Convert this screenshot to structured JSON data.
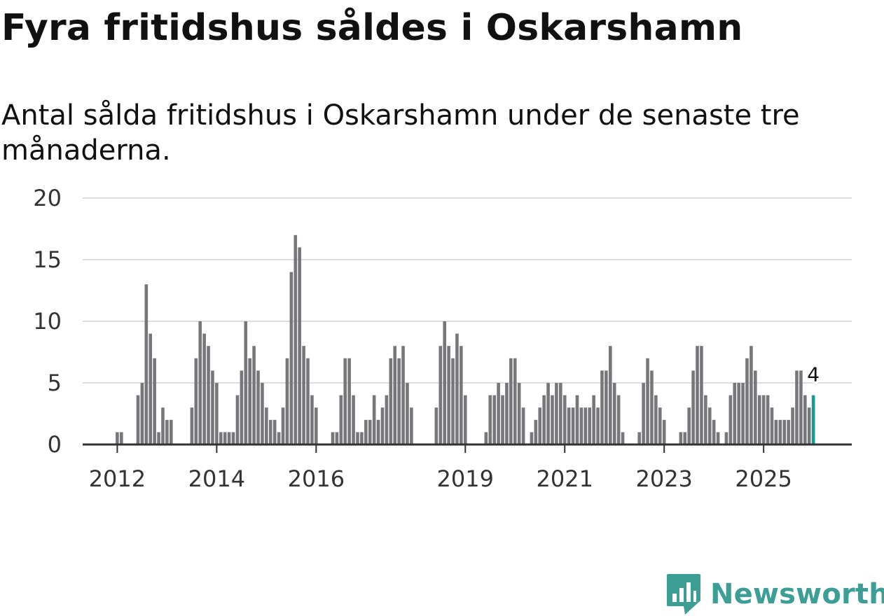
{
  "chart_data": {
    "type": "bar",
    "title": "Fyra fritidshus såldes i Oskarshamn",
    "subtitle": "Antal sålda fritidshus i Oskarshamn under de senaste tre månaderna.",
    "xlabel": "",
    "ylabel": "",
    "ylim": [
      0,
      20
    ],
    "yticks": [
      "0",
      "5",
      "10",
      "15",
      "20"
    ],
    "xticks": [
      "2012",
      "2014",
      "2016",
      "2019",
      "2021",
      "2023",
      "2025"
    ],
    "highlight_label": "4",
    "values": [
      0,
      1,
      1,
      0,
      0,
      0,
      4,
      5,
      13,
      9,
      7,
      1,
      3,
      2,
      2,
      0,
      0,
      0,
      0,
      3,
      7,
      10,
      9,
      8,
      6,
      5,
      1,
      1,
      1,
      1,
      4,
      6,
      10,
      7,
      8,
      6,
      5,
      3,
      2,
      2,
      1,
      3,
      7,
      14,
      17,
      16,
      8,
      7,
      4,
      3,
      0,
      0,
      0,
      1,
      1,
      4,
      7,
      7,
      4,
      1,
      1,
      2,
      2,
      4,
      2,
      3,
      4,
      7,
      8,
      7,
      8,
      5,
      3,
      0,
      0,
      0,
      0,
      0,
      3,
      8,
      10,
      8,
      7,
      9,
      8,
      4,
      0,
      0,
      0,
      0,
      1,
      4,
      4,
      5,
      4,
      5,
      7,
      7,
      5,
      3,
      0,
      1,
      2,
      3,
      4,
      5,
      4,
      5,
      5,
      4,
      3,
      3,
      4,
      3,
      3,
      3,
      4,
      3,
      6,
      6,
      8,
      5,
      4,
      1,
      0,
      0,
      0,
      1,
      5,
      7,
      6,
      4,
      3,
      2,
      0,
      0,
      0,
      1,
      1,
      3,
      6,
      8,
      8,
      4,
      3,
      2,
      1,
      0,
      1,
      4,
      5,
      5,
      5,
      7,
      8,
      6,
      4,
      4,
      4,
      3,
      2,
      2,
      2,
      2,
      3,
      6,
      6,
      4,
      3,
      4
    ],
    "bar_color": "#77767a",
    "highlight_color": "#159a96",
    "grid": true
  },
  "branding": {
    "name": "Newsworthy",
    "logo_icon": "newsworthy-bar-chart-logo-icon",
    "color": "#3d9e96"
  }
}
